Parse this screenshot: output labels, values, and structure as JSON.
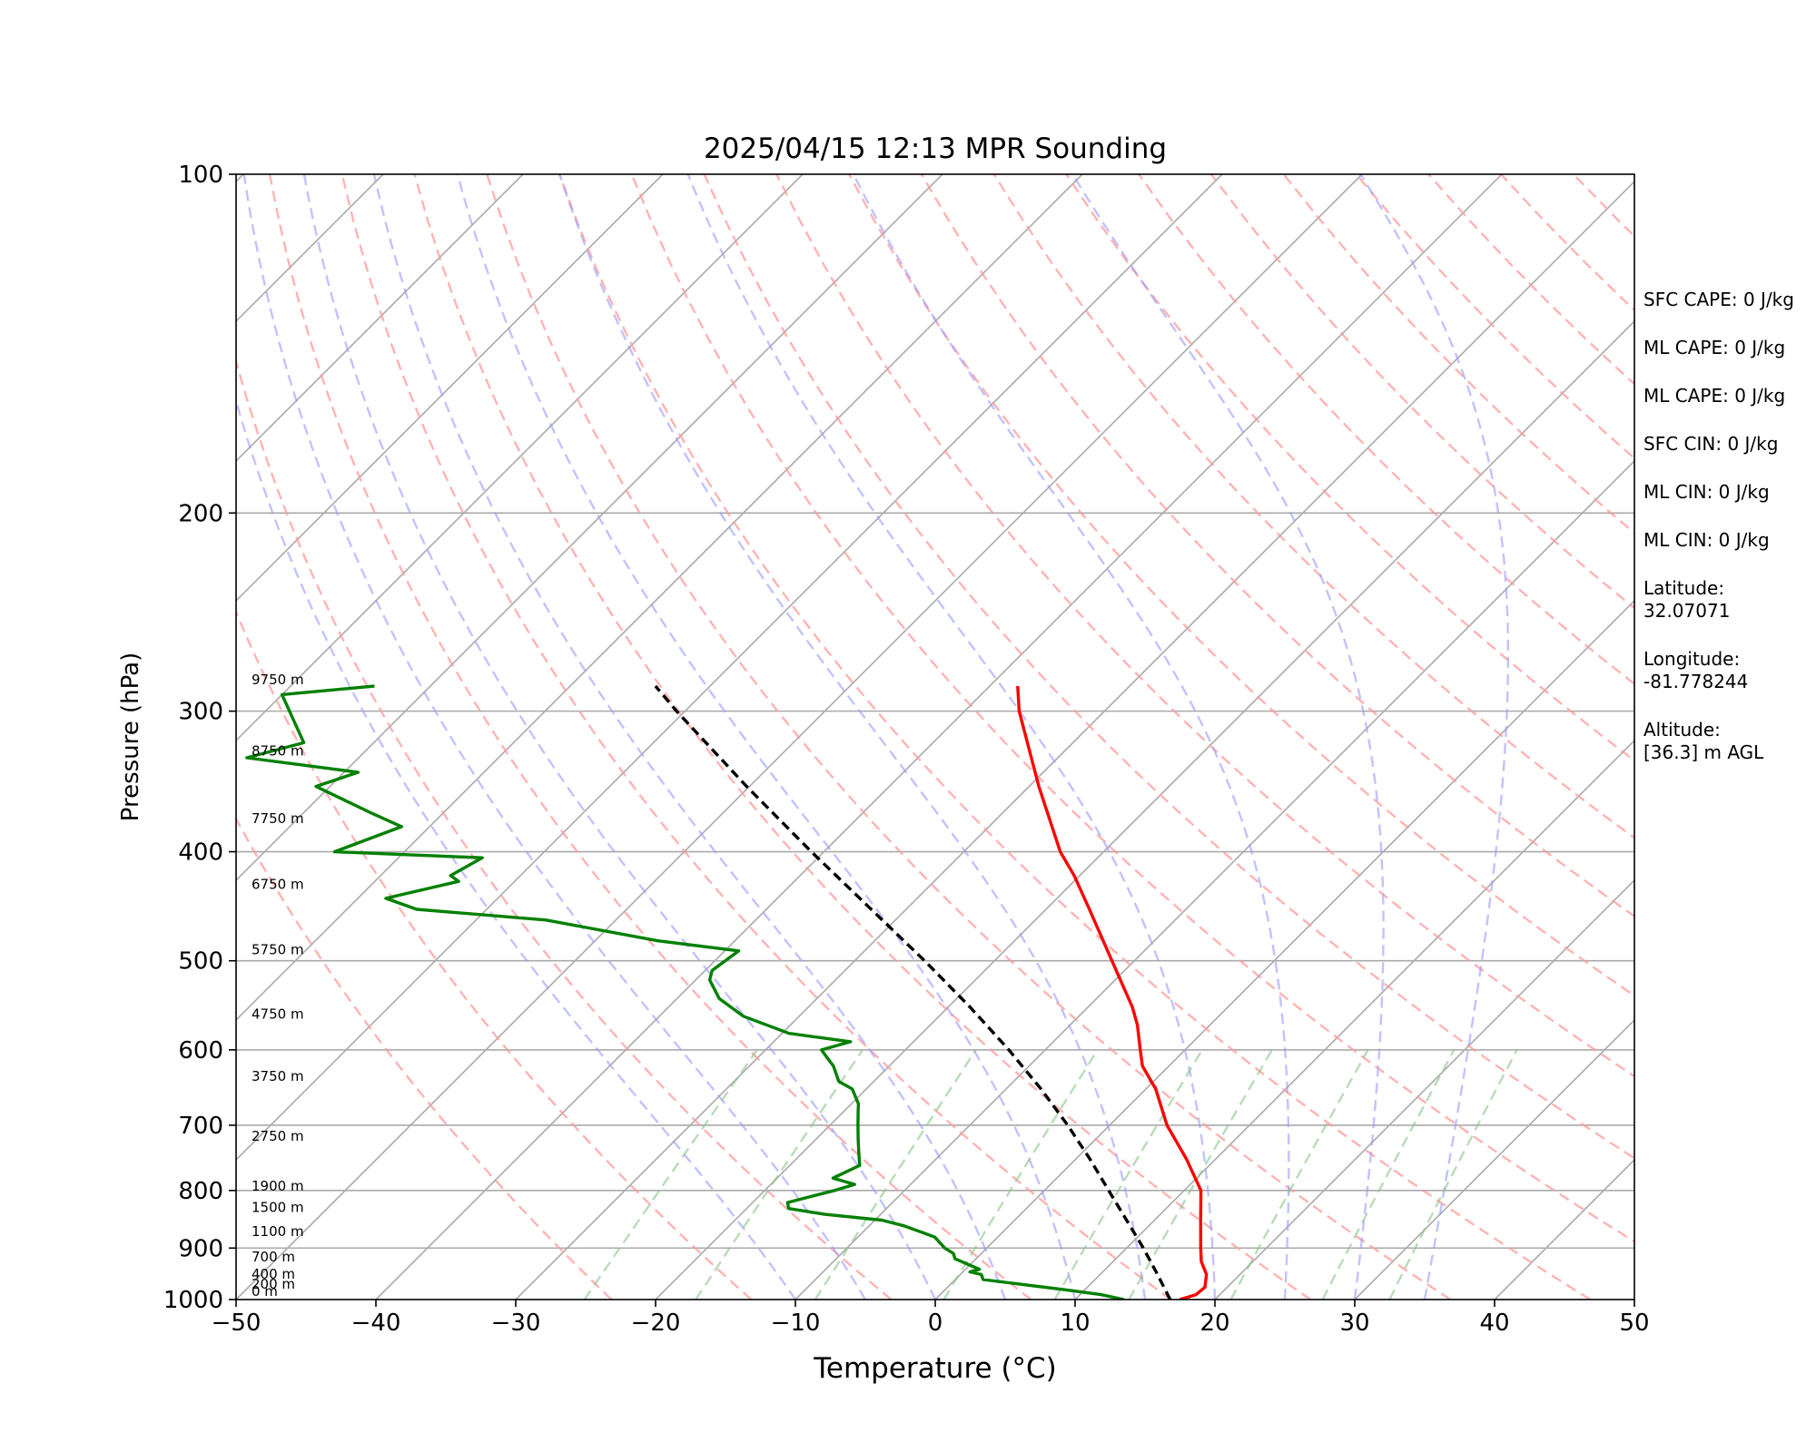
{
  "chart_data": {
    "type": "line",
    "title": "2025/04/15 12:13 MPR Sounding",
    "xlabel": "Temperature (°C)",
    "ylabel": "Pressure (hPa)",
    "xlim": [
      -50,
      50
    ],
    "ylim": [
      1000,
      100
    ],
    "y_scale": "log",
    "skew": "temperature axis skewed 45°",
    "x_ticks": [
      -50,
      -40,
      -30,
      -20,
      -10,
      0,
      10,
      20,
      30,
      40,
      50
    ],
    "x_tick_labels": [
      "−50",
      "−40",
      "−30",
      "−20",
      "−10",
      "0",
      "10",
      "20",
      "30",
      "40",
      "50"
    ],
    "y_ticks": [
      1000,
      900,
      800,
      700,
      600,
      500,
      400,
      300,
      200,
      100
    ],
    "y_tick_labels": [
      "1000",
      "900",
      "800",
      "700",
      "600",
      "500",
      "400",
      "300",
      "200",
      "100"
    ],
    "grid": true,
    "series": [
      {
        "color": "#ff0000",
        "p": [
          1000,
          990,
          975,
          950,
          925,
          900,
          850,
          800,
          750,
          700,
          650,
          620,
          600,
          570,
          550,
          500,
          450,
          420,
          400,
          350,
          300,
          285
        ],
        "t": [
          17.5,
          18.3,
          18.4,
          17.6,
          16.3,
          15.3,
          13.3,
          11.2,
          7.9,
          4.1,
          0.7,
          -1.9,
          -3.2,
          -5.2,
          -6.8,
          -11.6,
          -16.9,
          -20.4,
          -23.1,
          -29.3,
          -36.1,
          -38.0
        ]
      },
      {
        "color": "#008000",
        "p": [
          1000,
          990,
          980,
          960,
          950,
          945,
          940,
          920,
          910,
          900,
          880,
          860,
          850,
          840,
          830,
          820,
          800,
          790,
          780,
          760,
          740,
          720,
          700,
          680,
          670,
          650,
          640,
          620,
          610,
          600,
          590,
          580,
          560,
          540,
          520,
          510,
          490,
          480,
          460,
          450,
          440,
          425,
          420,
          405,
          400,
          380,
          370,
          350,
          340,
          330,
          320,
          290,
          285
        ],
        "t": [
          13.5,
          11.5,
          8.5,
          2,
          1.5,
          0.5,
          1,
          -1.5,
          -2,
          -3,
          -4.5,
          -7.5,
          -9.5,
          -14,
          -17,
          -17.5,
          -15,
          -14,
          -16,
          -15,
          -16,
          -17,
          -18,
          -19,
          -19.5,
          -21,
          -22.5,
          -24,
          -25,
          -26,
          -24.5,
          -29.5,
          -34,
          -37,
          -39,
          -39.5,
          -39,
          -45.5,
          -55,
          -65,
          -68,
          -64,
          -65,
          -64,
          -75,
          -72,
          -75,
          -81,
          -79,
          -88,
          -85,
          -90,
          -84
        ]
      },
      {
        "color": "#000000",
        "dashed": true,
        "p": [
          1000,
          950,
          900,
          850,
          800,
          750,
          700,
          650,
          600,
          550,
          500,
          450,
          400,
          350,
          300,
          285
        ],
        "t": [
          16.8,
          14.1,
          11.2,
          8.0,
          4.6,
          1.0,
          -3.0,
          -7.5,
          -12.6,
          -18.4,
          -25.0,
          -32.5,
          -40.9,
          -50.2,
          -60.6,
          -63.9
        ]
      }
    ],
    "height_labels": [
      {
        "label": "0 m",
        "p": 1000
      },
      {
        "label": "200 m",
        "p": 985
      },
      {
        "label": "400 m",
        "p": 965
      },
      {
        "label": "700 m",
        "p": 932
      },
      {
        "label": "1100 m",
        "p": 885
      },
      {
        "label": "1500 m",
        "p": 842
      },
      {
        "label": "1900 m",
        "p": 806
      },
      {
        "label": "2750 m",
        "p": 728
      },
      {
        "label": "3750 m",
        "p": 644
      },
      {
        "label": "4750 m",
        "p": 567
      },
      {
        "label": "5750 m",
        "p": 497
      },
      {
        "label": "6750 m",
        "p": 435
      },
      {
        "label": "7750 m",
        "p": 380
      },
      {
        "label": "8750 m",
        "p": 331
      },
      {
        "label": "9750 m",
        "p": 286
      }
    ],
    "background_lines": {
      "isotherms_every": 10,
      "dry_adiabats_theta_K": [
        250,
        260,
        270,
        280,
        290,
        300,
        310,
        320,
        330,
        340,
        350,
        360,
        370,
        380,
        390,
        400,
        410,
        420,
        430,
        440,
        450,
        460,
        470,
        480
      ],
      "moist_adiabats_start_C": [
        -10,
        -5,
        0,
        5,
        10,
        15,
        20,
        25,
        30,
        35
      ],
      "mixing_ratio_g_per_kg": [
        0.5,
        1,
        2,
        4,
        7,
        10,
        16,
        24,
        32
      ],
      "isotherm_color": "#aaaaaa",
      "dry_adiabat_color": "#ff9999",
      "moist_adiabat_color": "#9999ff",
      "mixing_ratio_color": "#88c488"
    }
  },
  "side_panel": {
    "sfc_cape": "SFC CAPE: 0 J/kg",
    "ml_cape_1": "ML CAPE: 0 J/kg",
    "ml_cape_2": "ML CAPE: 0 J/kg",
    "sfc_cin": "SFC CIN: 0 J/kg",
    "ml_cin_1": "ML CIN: 0 J/kg",
    "ml_cin_2": "ML CIN: 0 J/kg",
    "latitude_label": "Latitude:",
    "latitude_value": "32.07071",
    "longitude_label": "Longitude:",
    "longitude_value": "-81.778244",
    "altitude_label": "Altitude:",
    "altitude_value": "[36.3] m AGL"
  }
}
